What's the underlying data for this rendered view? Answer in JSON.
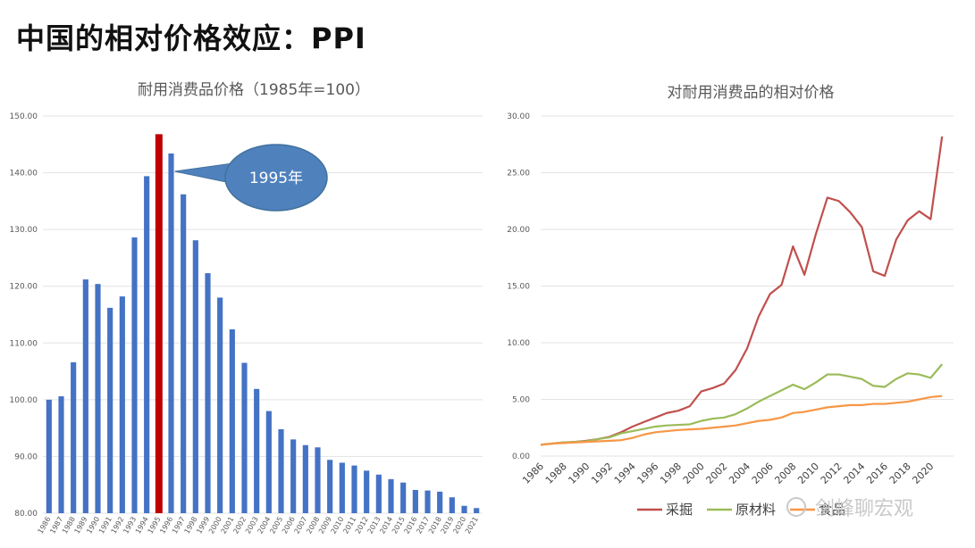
{
  "slide": {
    "title": "中国的相对价格效应：PPI"
  },
  "watermark": {
    "text": "剑峰聊宏观",
    "icon": "wechat-icon"
  },
  "chart_data": [
    {
      "type": "bar",
      "title": "耐用消费品价格（1985年=100）",
      "categories": [
        "1986",
        "1987",
        "1988",
        "1989",
        "1990",
        "1991",
        "1992",
        "1993",
        "1994",
        "1995",
        "1996",
        "1997",
        "1998",
        "1999",
        "2000",
        "2001",
        "2002",
        "2003",
        "2004",
        "2005",
        "2006",
        "2007",
        "2008",
        "2009",
        "2010",
        "2011",
        "2012",
        "2013",
        "2014",
        "2015",
        "2016",
        "2017",
        "2018",
        "2019",
        "2020",
        "2021"
      ],
      "values": [
        100.0,
        100.6,
        106.6,
        121.2,
        120.4,
        116.2,
        118.2,
        128.6,
        139.4,
        146.8,
        143.4,
        136.2,
        128.1,
        122.3,
        118.0,
        112.4,
        106.5,
        101.9,
        98.0,
        94.8,
        93.0,
        92.0,
        91.6,
        89.4,
        88.9,
        88.4,
        87.5,
        86.8,
        86.0,
        85.4,
        84.1,
        84.0,
        83.8,
        82.8,
        81.3,
        80.9
      ],
      "highlight": "1995",
      "highlight_color": "#c00000",
      "bar_color": "#4472c4",
      "ylim": [
        80,
        150
      ],
      "yticks": [
        "80.00",
        "90.00",
        "100.00",
        "110.00",
        "120.00",
        "130.00",
        "140.00",
        "150.00"
      ],
      "callout": {
        "text": "1995年",
        "fill": "#4f81bd",
        "border": "#41719c"
      }
    },
    {
      "type": "line",
      "title": "对耐用消费品的相对价格",
      "x": [
        1986,
        1987,
        1988,
        1989,
        1990,
        1991,
        1992,
        1993,
        1994,
        1995,
        1996,
        1997,
        1998,
        1999,
        2000,
        2001,
        2002,
        2003,
        2004,
        2005,
        2006,
        2007,
        2008,
        2009,
        2010,
        2011,
        2012,
        2013,
        2014,
        2015,
        2016,
        2017,
        2018,
        2019,
        2020,
        2021
      ],
      "xticks": [
        "1986",
        "1988",
        "1990",
        "1992",
        "1994",
        "1996",
        "1998",
        "2000",
        "2002",
        "2004",
        "2006",
        "2008",
        "2010",
        "2012",
        "2014",
        "2016",
        "2018",
        "2020"
      ],
      "ylim": [
        0,
        30
      ],
      "yticks": [
        "0.00",
        "5.00",
        "10.00",
        "15.00",
        "20.00",
        "25.00",
        "30.00"
      ],
      "series": [
        {
          "name": "采掘",
          "color": "#c0504d",
          "values": [
            1.0,
            1.1,
            1.2,
            1.25,
            1.35,
            1.5,
            1.7,
            2.1,
            2.6,
            3.0,
            3.4,
            3.8,
            4.0,
            4.4,
            5.7,
            6.0,
            6.4,
            7.6,
            9.5,
            12.3,
            14.3,
            15.1,
            18.5,
            16.0,
            19.6,
            22.8,
            22.5,
            21.5,
            20.2,
            16.3,
            15.9,
            19.1,
            20.8,
            21.6,
            20.9,
            28.2
          ]
        },
        {
          "name": "原材料",
          "color": "#9bbb59",
          "values": [
            1.0,
            1.1,
            1.2,
            1.25,
            1.3,
            1.5,
            1.65,
            2.0,
            2.2,
            2.4,
            2.6,
            2.7,
            2.75,
            2.8,
            3.1,
            3.3,
            3.4,
            3.7,
            4.2,
            4.8,
            5.3,
            5.8,
            6.3,
            5.9,
            6.5,
            7.2,
            7.2,
            7.0,
            6.8,
            6.2,
            6.1,
            6.8,
            7.3,
            7.2,
            6.9,
            8.1
          ]
        },
        {
          "name": "食品",
          "color": "#f79646",
          "values": [
            1.0,
            1.1,
            1.15,
            1.2,
            1.25,
            1.3,
            1.35,
            1.4,
            1.6,
            1.9,
            2.1,
            2.2,
            2.3,
            2.35,
            2.4,
            2.5,
            2.6,
            2.7,
            2.9,
            3.1,
            3.2,
            3.4,
            3.8,
            3.9,
            4.1,
            4.3,
            4.4,
            4.5,
            4.5,
            4.6,
            4.6,
            4.7,
            4.8,
            5.0,
            5.2,
            5.3
          ]
        }
      ]
    }
  ]
}
